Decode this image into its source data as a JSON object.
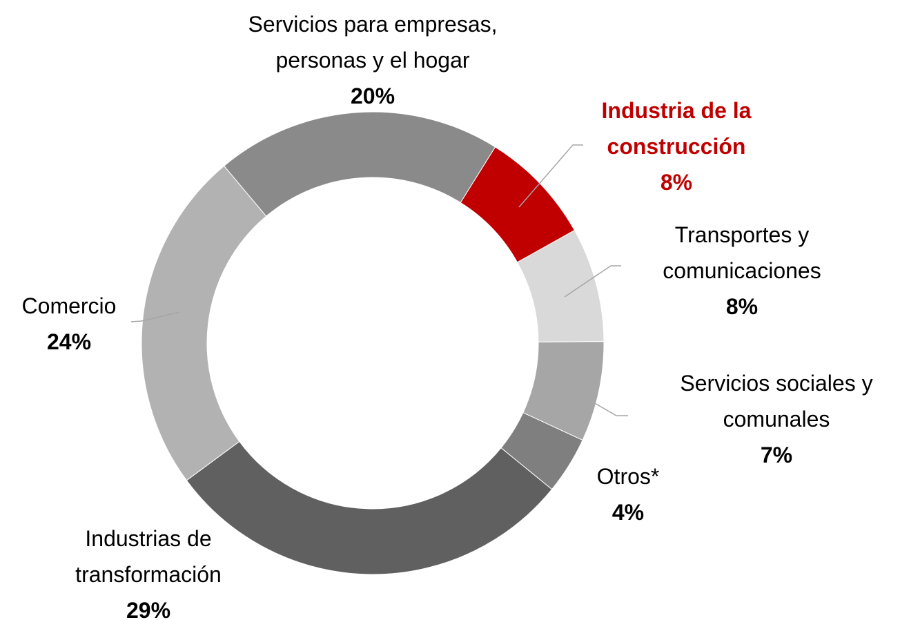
{
  "chart_data": {
    "type": "donut",
    "categories": [
      "Industria de la construcción",
      "Transportes y comunicaciones",
      "Servicios sociales y comunales",
      "Otros*",
      "Industrias de transformación",
      "Comercio",
      "Servicios para empresas, personas y el hogar"
    ],
    "values": [
      8,
      8,
      7,
      4,
      29,
      24,
      20
    ],
    "value_labels": [
      "8%",
      "8%",
      "7%",
      "4%",
      "29%",
      "24%",
      "20%"
    ],
    "colors": [
      "#c00000",
      "#d9d9d9",
      "#a6a6a6",
      "#7f7f7f",
      "#606060",
      "#b2b2b2",
      "#8a8a8a"
    ],
    "highlight_index": 0
  }
}
